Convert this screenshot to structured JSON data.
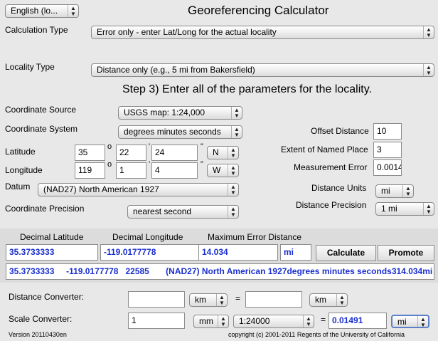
{
  "app": {
    "language": "English (lo...",
    "title": "Georeferencing Calculator"
  },
  "calc_type": {
    "label": "Calculation Type",
    "value": "Error only - enter Lat/Long for the actual locality"
  },
  "locality_type": {
    "label": "Locality Type",
    "value": "Distance only (e.g., 5 mi from Bakersfield)"
  },
  "step": "Step 3) Enter all of the parameters for the locality.",
  "coord_source": {
    "label": "Coordinate Source",
    "value": "USGS map: 1:24,000"
  },
  "coord_system": {
    "label": "Coordinate System",
    "value": "degrees minutes seconds"
  },
  "latitude": {
    "label": "Latitude",
    "deg": "35",
    "min": "22",
    "sec": "24",
    "dir": "N"
  },
  "longitude": {
    "label": "Longitude",
    "deg": "119",
    "min": "1",
    "sec": "4",
    "dir": "W"
  },
  "symbols": {
    "deg": "o",
    "min": "'",
    "sec": "\""
  },
  "datum": {
    "label": "Datum",
    "value": "(NAD27) North American 1927"
  },
  "coord_precision": {
    "label": "Coordinate Precision",
    "value": "nearest second"
  },
  "offset_distance": {
    "label": "Offset Distance",
    "value": "10"
  },
  "extent": {
    "label": "Extent of Named Place",
    "value": "3"
  },
  "measurement_error": {
    "label": "Measurement Error",
    "value": "0.0014"
  },
  "distance_units": {
    "label": "Distance Units",
    "value": "mi"
  },
  "distance_precision": {
    "label": "Distance Precision",
    "value": "1 mi"
  },
  "results": {
    "h_lat": "Decimal Latitude",
    "h_lon": "Decimal Longitude",
    "h_err": "Maximum Error Distance",
    "lat": "35.3733333",
    "lon": "-119.0177778",
    "err": "14.034",
    "err_unit": "mi",
    "calculate": "Calculate",
    "promote": "Promote",
    "summary": "35.3733333     -119.0177778   22585       (NAD27) North American 1927degrees minutes seconds314.034mi"
  },
  "distance_converter": {
    "label": "Distance Converter:",
    "from_unit": "km",
    "equals": "=",
    "to_unit": "km",
    "from_value": "",
    "to_value": ""
  },
  "scale_converter": {
    "label": "Scale Converter:",
    "value": "1",
    "unit": "mm",
    "scale": "1:24000",
    "equals": "=",
    "result": "0.01491",
    "result_unit": "mi"
  },
  "footer": {
    "version": "Version 20110430en",
    "copyright": "copyright (c) 2001-2011 Regents of the University of California"
  }
}
